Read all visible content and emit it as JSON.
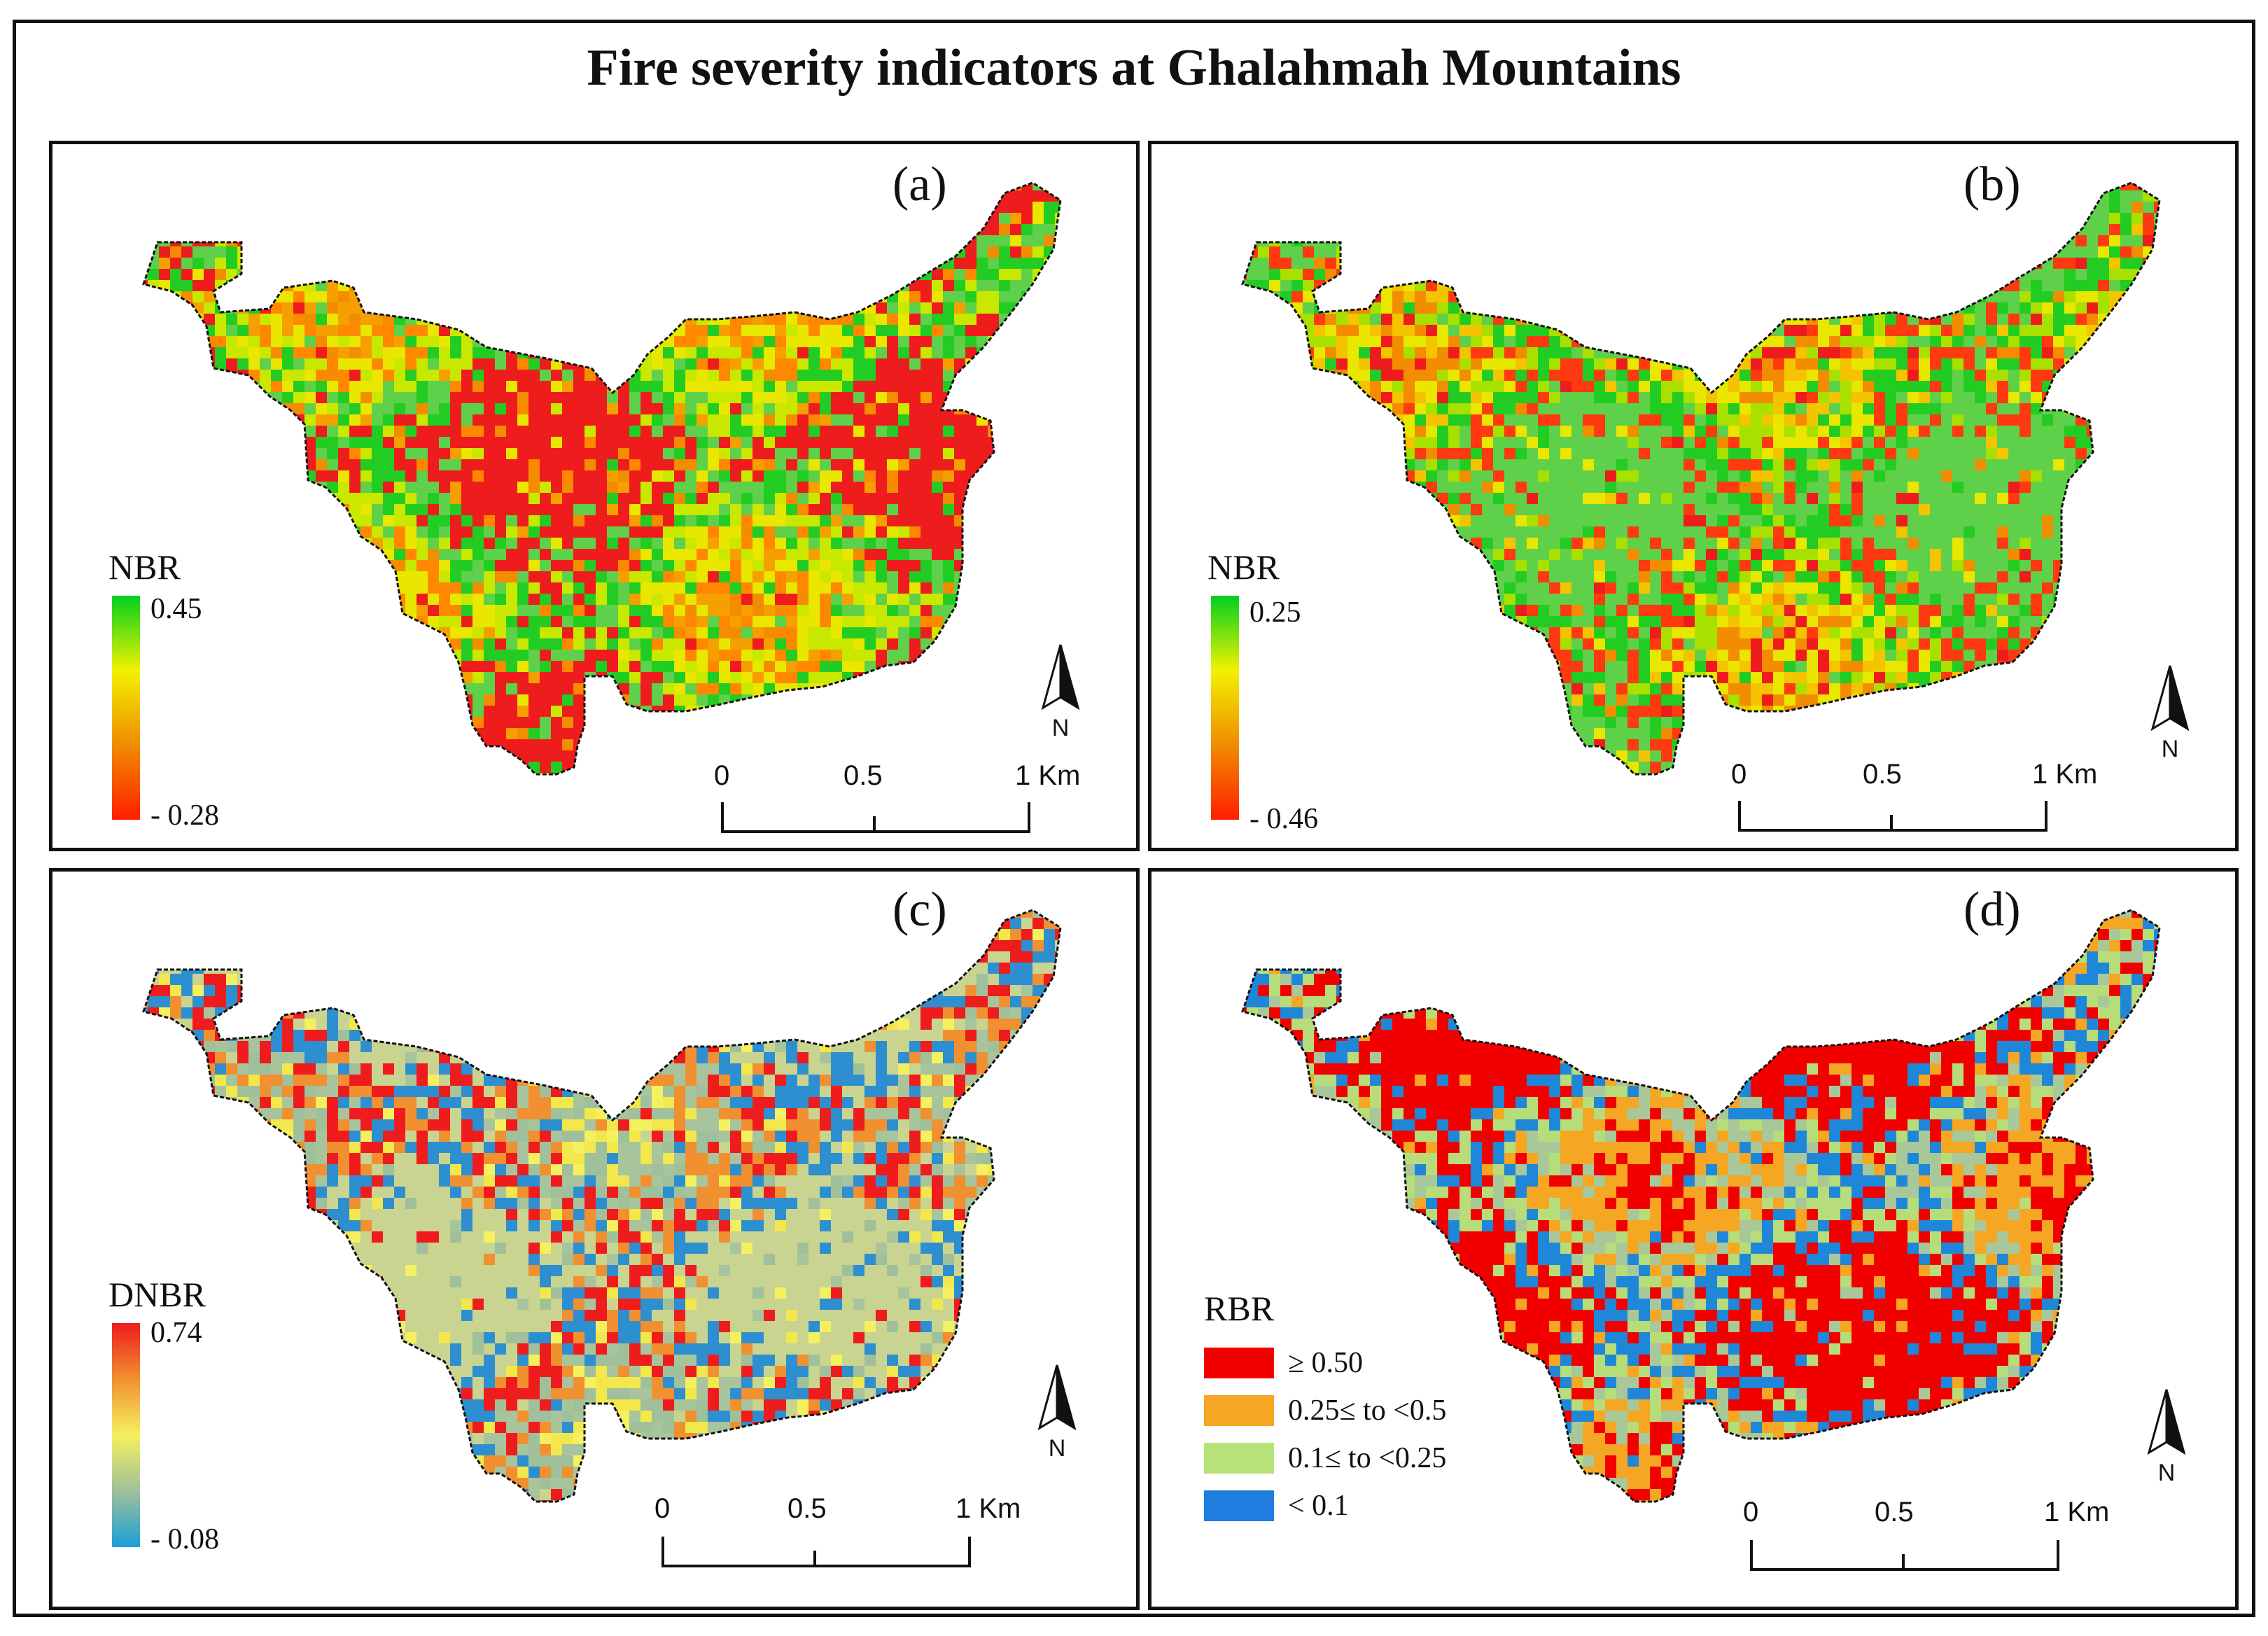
{
  "title": "Fire severity indicators at Ghalahmah Mountains",
  "panels": {
    "a": {
      "label": "(a)",
      "legend_title": "NBR",
      "legend_max": "0.45",
      "legend_min": "- 0.28",
      "ramp_colors": [
        "#00d11f",
        "#f2f200",
        "#f08c00",
        "#ff1e00"
      ],
      "pixel_palette": [
        "#f28c00",
        "#f5a000",
        "#ff8800",
        "#e9e600",
        "#c8e800",
        "#22cc22",
        "#5fd04a",
        "#ee1c1c"
      ]
    },
    "b": {
      "label": "(b)",
      "legend_title": "NBR",
      "legend_max": "0.25",
      "legend_min": "- 0.46",
      "ramp_colors": [
        "#00d11f",
        "#f2f200",
        "#f08c00",
        "#ff1e00"
      ],
      "pixel_palette": [
        "#ee1c1c",
        "#f28c00",
        "#f5c400",
        "#e9e600",
        "#a8e000",
        "#22cc22",
        "#ff3a10",
        "#5fd04a"
      ]
    },
    "c": {
      "label": "(c)",
      "legend_title": "DNBR",
      "legend_max": "0.74",
      "legend_min": "- 0.08",
      "ramp_colors": [
        "#ee1c1c",
        "#f09030",
        "#f5f060",
        "#9fc09a",
        "#1a9fd8"
      ],
      "pixel_palette": [
        "#f5f060",
        "#f2e84c",
        "#9fc09a",
        "#a7c49c",
        "#f09030",
        "#ee1c1c",
        "#2e8fd0",
        "#c9d490"
      ]
    },
    "d": {
      "label": "(d)",
      "legend_title": "RBR",
      "pixel_palette": [
        "#f20000",
        "#f20000",
        "#f5a623",
        "#f5a623",
        "#a8c89a",
        "#b7dc7a",
        "#1f87d8",
        "#f20000"
      ],
      "classes": [
        {
          "label": "≥ 0.50",
          "color": "#f20000"
        },
        {
          "label": "0.25≤ to <0.5",
          "color": "#f5a623"
        },
        {
          "label": "0.1≤ to <0.25",
          "color": "#b7e27a"
        },
        {
          "label": "< 0.1",
          "color": "#1f7de0"
        }
      ]
    }
  },
  "scalebar": {
    "t0": "0",
    "t1": "0.5",
    "t2": "1 Km"
  },
  "north_label": "N",
  "colors": {
    "outline": "#111111",
    "background": "#ffffff"
  }
}
